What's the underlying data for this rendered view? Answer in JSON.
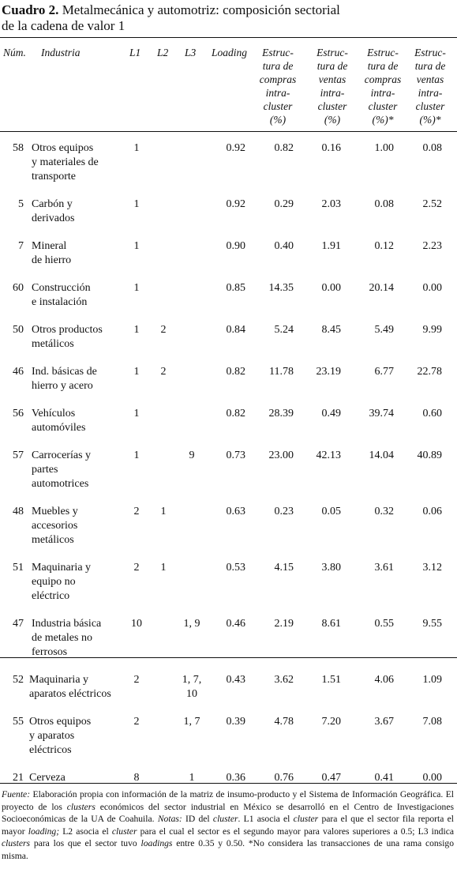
{
  "title": {
    "label": "Cuadro 2.",
    "lines": [
      "Metalmecánica y automotriz: composición sectorial",
      "de la cadena de valor 1"
    ]
  },
  "table": {
    "headers": [
      [
        "Núm."
      ],
      [
        "Industria"
      ],
      [
        "L1"
      ],
      [
        "L2"
      ],
      [
        "L3"
      ],
      [
        "Loading"
      ],
      [
        "Estruc-",
        "tura de",
        "compras",
        "intra-",
        "cluster",
        "(%)"
      ],
      [
        "Estruc-",
        "tura de",
        "ventas",
        "intra-",
        "cluster",
        "(%)"
      ],
      [
        "Estruc-",
        "tura de",
        "compras",
        "intra-",
        "cluster",
        "(%)*"
      ],
      [
        "Estruc-",
        "tura de",
        "ventas",
        "intra-",
        "cluster",
        "(%)*"
      ]
    ],
    "sections": [
      [
        [
          "58",
          [
            "Otros equipos",
            "y materiales de",
            "transporte"
          ],
          "1",
          null,
          null,
          "0.92",
          "0.82",
          "0.16",
          "1.00",
          "0.08"
        ],
        [
          "5",
          [
            "Carbón y",
            "derivados"
          ],
          "1",
          null,
          null,
          "0.92",
          "0.29",
          "2.03",
          "0.08",
          "2.52"
        ],
        [
          "7",
          [
            "Mineral",
            "de hierro"
          ],
          "1",
          null,
          null,
          "0.90",
          "0.40",
          "1.91",
          "0.12",
          "2.23"
        ],
        [
          "60",
          [
            "Construcción",
            "e instalación"
          ],
          "1",
          null,
          null,
          "0.85",
          "14.35",
          "0.00",
          "20.14",
          "0.00"
        ],
        [
          "50",
          [
            "Otros productos",
            "metálicos"
          ],
          "1",
          "2",
          null,
          "0.84",
          "5.24",
          "8.45",
          "5.49",
          "9.99"
        ],
        [
          "46",
          [
            "Ind. básicas de",
            "hierro y acero"
          ],
          "1",
          "2",
          null,
          "0.82",
          "11.78",
          "23.19",
          "6.77",
          "22.78"
        ],
        [
          "56",
          [
            "Vehículos",
            "automóviles"
          ],
          "1",
          null,
          null,
          "0.82",
          "28.39",
          "0.49",
          "39.74",
          "0.60"
        ],
        [
          "57",
          [
            "Carrocerías y",
            "partes",
            "automotrices"
          ],
          "1",
          null,
          "9",
          "0.73",
          "23.00",
          "42.13",
          "14.04",
          "40.89"
        ],
        [
          "48",
          [
            "Muebles y",
            "accesorios",
            "metálicos"
          ],
          "2",
          "1",
          null,
          "0.63",
          "0.23",
          "0.05",
          "0.32",
          "0.06"
        ],
        [
          "51",
          [
            "Maquinaria y",
            "equipo no",
            "eléctrico"
          ],
          "2",
          "1",
          null,
          "0.53",
          "4.15",
          "3.80",
          "3.61",
          "3.12"
        ],
        [
          "47",
          [
            "Industria básica",
            "de metales no",
            "ferrosos"
          ],
          "10",
          null,
          "1, 9",
          "0.46",
          "2.19",
          "8.61",
          "0.55",
          "9.55"
        ]
      ],
      [
        [
          "52",
          [
            "Maquinaria y",
            "aparatos eléctricos"
          ],
          "2",
          null,
          [
            "1, 7,",
            "10"
          ],
          "0.43",
          "3.62",
          "1.51",
          "4.06",
          "1.09"
        ],
        [
          "55",
          [
            "Otros equipos",
            "y aparatos",
            "eléctricos"
          ],
          "2",
          null,
          "1, 7",
          "0.39",
          "4.78",
          "7.20",
          "3.67",
          "7.08"
        ],
        [
          "21",
          [
            "Cerveza"
          ],
          "8",
          null,
          "1",
          "0.36",
          "0.76",
          "0.47",
          "0.41",
          "0.00"
        ]
      ]
    ]
  },
  "footnote": [
    {
      "text": "Fuente:",
      "italic": true
    },
    {
      "text": " Elaboración propia con información de la matriz de insumo-producto y el Sistema de Información Geográfica. El proyecto de los ",
      "italic": false
    },
    {
      "text": "clusters",
      "italic": true
    },
    {
      "text": " económicos del sector industrial en México se desarrolló en el Centro de Investigaciones Socioeconómicas de la UA de Coahuila. ",
      "italic": false
    },
    {
      "text": "Notas:",
      "italic": true
    },
    {
      "text": " ID del ",
      "italic": false
    },
    {
      "text": "cluster",
      "italic": true
    },
    {
      "text": ". L1 asocia el ",
      "italic": false
    },
    {
      "text": "cluster",
      "italic": true
    },
    {
      "text": " para el que el sector fila reporta el mayor ",
      "italic": false
    },
    {
      "text": "loading;",
      "italic": true
    },
    {
      "text": " L2 asocia el ",
      "italic": false
    },
    {
      "text": "cluster",
      "italic": true
    },
    {
      "text": " para el cual el sector es el segundo mayor para valores superiores a 0.5; L3 indica ",
      "italic": false
    },
    {
      "text": "clusters",
      "italic": true
    },
    {
      "text": " para los que el sector tuvo ",
      "italic": false
    },
    {
      "text": "loadings",
      "italic": true
    },
    {
      "text": " entre 0.35 y 0.50. *No considera las transacciones de una rama consigo misma.",
      "italic": false
    }
  ]
}
